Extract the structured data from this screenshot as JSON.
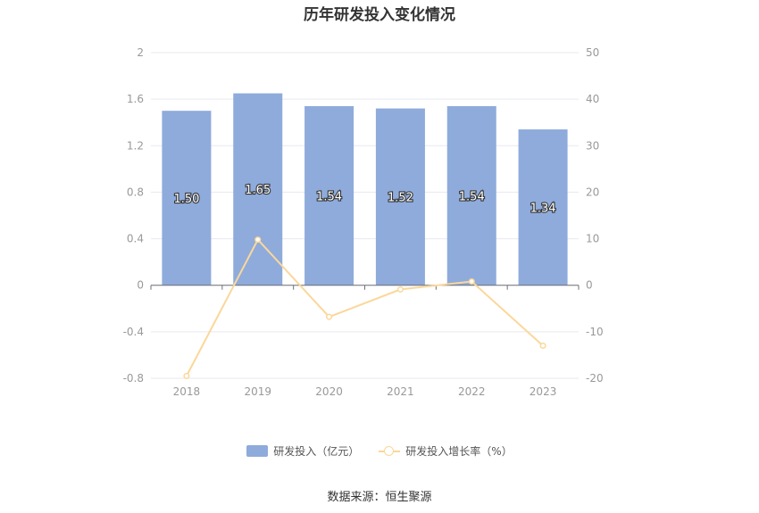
{
  "chart_data": {
    "type": "bar",
    "title": "历年研发投入变化情况",
    "categories": [
      "2018",
      "2019",
      "2020",
      "2021",
      "2022",
      "2023"
    ],
    "series": [
      {
        "name": "研发投入（亿元）",
        "type": "bar",
        "axis": "left",
        "values": [
          1.5,
          1.65,
          1.54,
          1.52,
          1.54,
          1.34
        ],
        "labels": [
          "1.50",
          "1.65",
          "1.54",
          "1.52",
          "1.54",
          "1.34"
        ],
        "color": "#8eabdb"
      },
      {
        "name": "研发投入增长率（%）",
        "type": "line",
        "axis": "right",
        "values": [
          -19.5,
          9.8,
          -6.8,
          -0.9,
          0.8,
          -13.0
        ],
        "color": "#fbd79a"
      }
    ],
    "y_left": {
      "min": -0.8,
      "max": 2,
      "ticks": [
        "-0.8",
        "-0.4",
        "0",
        "0.4",
        "0.8",
        "1.2",
        "1.6",
        "2"
      ]
    },
    "y_right": {
      "min": -20,
      "max": 50,
      "ticks": [
        "-20",
        "-10",
        "0",
        "10",
        "20",
        "30",
        "40",
        "50"
      ]
    },
    "grid": true,
    "legend_position": "bottom"
  },
  "source_text": "数据来源：恒生聚源"
}
